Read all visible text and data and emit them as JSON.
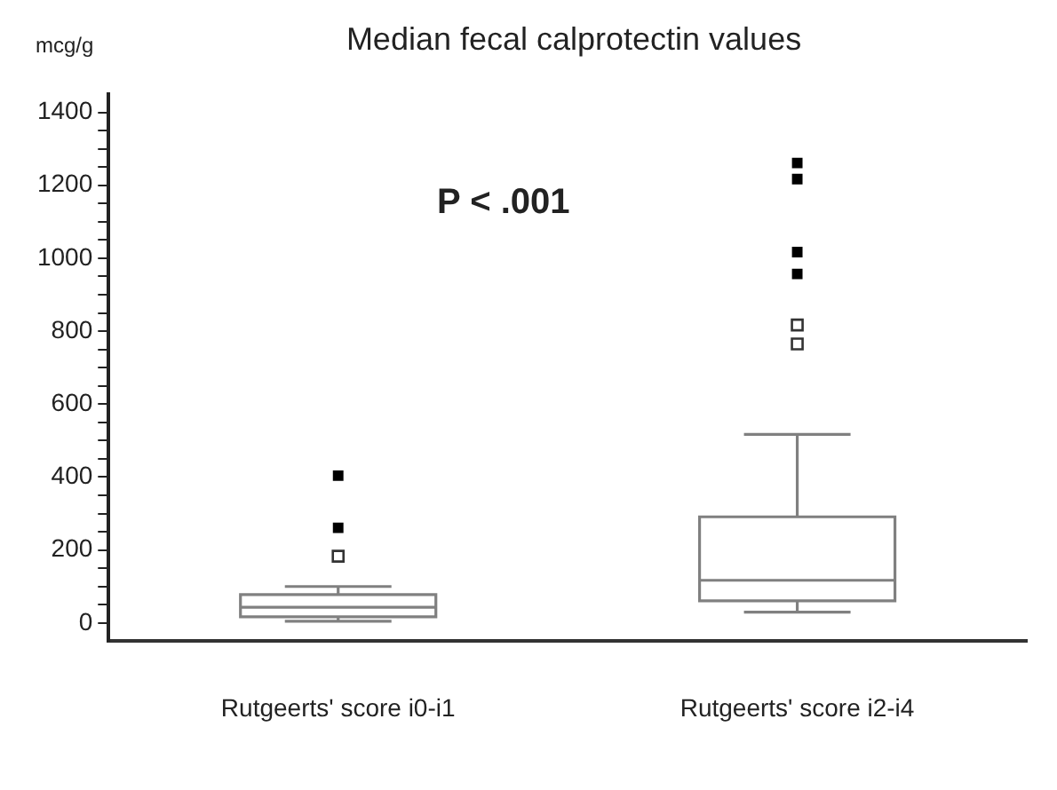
{
  "chart_data": {
    "type": "box",
    "title": "Median fecal calprotectin values",
    "ylabel": "mcg/g",
    "categories": [
      "Rutgeerts' score i0-i1",
      "Rutgeerts' score i2-i4"
    ],
    "boxes": [
      {
        "low": 5,
        "q1": 17,
        "median": 43,
        "q3": 78,
        "high": 100,
        "outliers": [
          183
        ]
      },
      {
        "low": 30,
        "q1": 61,
        "median": 117,
        "q3": 291,
        "high": 517,
        "outliers": [
          765,
          817
        ]
      }
    ],
    "color": "#808080",
    "series": [
      {
        "type": "scatter",
        "color": "#000000",
        "marker": "square",
        "x": [
          "Rutgeerts' score i0-i1",
          "Rutgeerts' score i0-i1",
          "Rutgeerts' score i2-i4",
          "Rutgeerts' score i2-i4",
          "Rutgeerts' score i2-i4",
          "Rutgeerts' score i2-i4"
        ],
        "values": [
          261,
          404,
          957,
          1017,
          1217,
          1261
        ]
      }
    ],
    "annotations": [
      {
        "text": "P < .001"
      }
    ],
    "ylim": [
      -50,
      1450
    ],
    "yticks": [
      0,
      {
        "value": 50,
        "label": null
      },
      {
        "value": 100,
        "label": null
      },
      {
        "value": 150,
        "label": null
      },
      200,
      {
        "value": 250,
        "label": null
      },
      {
        "value": 300,
        "label": null
      },
      {
        "value": 350,
        "label": null
      },
      400,
      {
        "value": 450,
        "label": null
      },
      {
        "value": 500,
        "label": null
      },
      {
        "value": 550,
        "label": null
      },
      600,
      {
        "value": 650,
        "label": null
      },
      {
        "value": 700,
        "label": null
      },
      {
        "value": 750,
        "label": null
      },
      800,
      {
        "value": 850,
        "label": null
      },
      {
        "value": 900,
        "label": null
      },
      {
        "value": 950,
        "label": null
      },
      1000,
      {
        "value": 1050,
        "label": null
      },
      {
        "value": 1100,
        "label": null
      },
      {
        "value": 1150,
        "label": null
      },
      1200,
      {
        "value": 1250,
        "label": null
      },
      {
        "value": 1300,
        "label": null
      },
      {
        "value": 1350,
        "label": null
      },
      1400
    ],
    "grid": false,
    "legend": false
  }
}
